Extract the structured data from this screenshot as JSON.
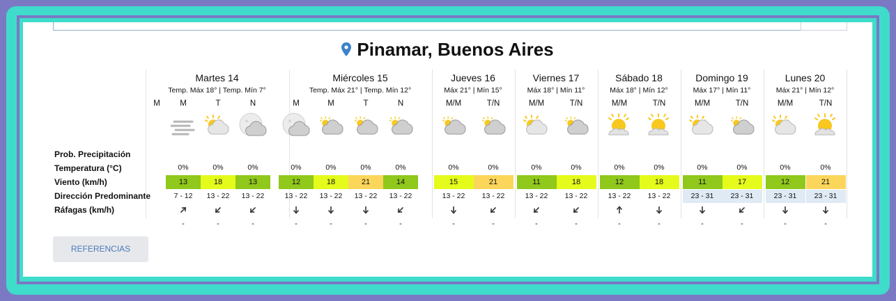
{
  "colors": {
    "frame_outer": "#7b78c4",
    "frame_teal": "#3fdccb",
    "pin": "#3d82c8",
    "temp_green": "#90c81b",
    "temp_lime": "#e4fb1b",
    "temp_orange": "#fcd65b",
    "wind_blue": "#dfeaf5",
    "ref_text": "#4a7ab9"
  },
  "location": {
    "title": "Pinamar, Buenos Aires",
    "icon": "map-pin-icon"
  },
  "row_labels": [
    "Prob. Precipitación",
    "Temperatura (°C)",
    "Viento (km/h)",
    "Dirección Predominante",
    "Ráfagas (km/h)"
  ],
  "extra_column": {
    "period": "M"
  },
  "days": [
    {
      "name": "Martes 14",
      "temps": "Temp. Máx 18° | Temp. Mín 7°",
      "periods": [
        {
          "label": "M",
          "icon": "fog-icon",
          "prob": "0%",
          "temp": "13",
          "temp_color": "#90c81b",
          "wind": "7 - 12",
          "wind_bg": "",
          "dir": "arrow-northeast-icon",
          "gust": "-"
        },
        {
          "label": "T",
          "icon": "sun-cloud-icon",
          "prob": "0%",
          "temp": "18",
          "temp_color": "#e4fb1b",
          "wind": "13 - 22",
          "wind_bg": "",
          "dir": "arrow-southwest-icon",
          "gust": "-"
        },
        {
          "label": "N",
          "icon": "moon-cloud-icon",
          "prob": "0%",
          "temp": "13",
          "temp_color": "#90c81b",
          "wind": "13 - 22",
          "wind_bg": "",
          "dir": "arrow-southwest-icon",
          "gust": "-"
        }
      ]
    },
    {
      "name": "Miércoles 15",
      "temps": "Temp. Máx 21° | Temp. Mín 12°",
      "periods": [
        {
          "label": "M",
          "icon": "moon-cloud-icon",
          "prob": "0%",
          "temp": "12",
          "temp_color": "#90c81b",
          "wind": "13 - 22",
          "wind_bg": "",
          "dir": "arrow-south-icon",
          "gust": "-"
        },
        {
          "label": "M",
          "icon": "cloudy-sun-icon",
          "prob": "0%",
          "temp": "18",
          "temp_color": "#e4fb1b",
          "wind": "13 - 22",
          "wind_bg": "",
          "dir": "arrow-south-icon",
          "gust": "-"
        },
        {
          "label": "T",
          "icon": "cloudy-sun-icon",
          "prob": "0%",
          "temp": "21",
          "temp_color": "#fcd65b",
          "wind": "13 - 22",
          "wind_bg": "",
          "dir": "arrow-south-icon",
          "gust": "-"
        },
        {
          "label": "N",
          "icon": "cloudy-sun-icon",
          "prob": "0%",
          "temp": "14",
          "temp_color": "#90c81b",
          "wind": "13 - 22",
          "wind_bg": "",
          "dir": "arrow-southwest-icon",
          "gust": "-"
        }
      ]
    },
    {
      "name": "Jueves 16",
      "temps": "Máx 21° | Mín 15°",
      "periods": [
        {
          "label": "M/M",
          "icon": "cloudy-sun-icon",
          "prob": "0%",
          "temp": "15",
          "temp_color": "#e4fb1b",
          "wind": "13 - 22",
          "wind_bg": "",
          "dir": "arrow-south-icon",
          "gust": "-"
        },
        {
          "label": "T/N",
          "icon": "cloudy-sun-icon",
          "prob": "0%",
          "temp": "21",
          "temp_color": "#fcd65b",
          "wind": "13 - 22",
          "wind_bg": "",
          "dir": "arrow-southwest-icon",
          "gust": "-"
        }
      ]
    },
    {
      "name": "Viernes 17",
      "temps": "Máx 18° | Mín 11°",
      "periods": [
        {
          "label": "M/M",
          "icon": "sun-cloud-icon",
          "prob": "0%",
          "temp": "11",
          "temp_color": "#90c81b",
          "wind": "13 - 22",
          "wind_bg": "",
          "dir": "arrow-southwest-icon",
          "gust": "-"
        },
        {
          "label": "T/N",
          "icon": "cloudy-sun-icon",
          "prob": "0%",
          "temp": "18",
          "temp_color": "#e4fb1b",
          "wind": "13 - 22",
          "wind_bg": "",
          "dir": "arrow-southwest-icon",
          "gust": "-"
        }
      ]
    },
    {
      "name": "Sábado 18",
      "temps": "Máx 18° | Mín 12°",
      "periods": [
        {
          "label": "M/M",
          "icon": "sunny-icon",
          "prob": "0%",
          "temp": "12",
          "temp_color": "#90c81b",
          "wind": "13 - 22",
          "wind_bg": "",
          "dir": "arrow-north-icon",
          "gust": "-"
        },
        {
          "label": "T/N",
          "icon": "sunny-icon",
          "prob": "0%",
          "temp": "18",
          "temp_color": "#e4fb1b",
          "wind": "13 - 22",
          "wind_bg": "",
          "dir": "arrow-south-icon",
          "gust": "-"
        }
      ]
    },
    {
      "name": "Domingo 19",
      "temps": "Máx 17° | Mín 11°",
      "periods": [
        {
          "label": "M/M",
          "icon": "sun-cloud-icon",
          "prob": "0%",
          "temp": "11",
          "temp_color": "#90c81b",
          "wind": "23 - 31",
          "wind_bg": "#dfeaf5",
          "dir": "arrow-south-icon",
          "gust": "-"
        },
        {
          "label": "T/N",
          "icon": "cloudy-sun-icon",
          "prob": "0%",
          "temp": "17",
          "temp_color": "#e4fb1b",
          "wind": "23 - 31",
          "wind_bg": "#dfeaf5",
          "dir": "arrow-southwest-icon",
          "gust": "-"
        }
      ]
    },
    {
      "name": "Lunes 20",
      "temps": "Máx 21° | Mín 12°",
      "periods": [
        {
          "label": "M/M",
          "icon": "sun-cloud-icon",
          "prob": "0%",
          "temp": "12",
          "temp_color": "#90c81b",
          "wind": "23 - 31",
          "wind_bg": "#dfeaf5",
          "dir": "arrow-south-icon",
          "gust": "-"
        },
        {
          "label": "T/N",
          "icon": "sunny-icon",
          "prob": "0%",
          "temp": "21",
          "temp_color": "#fcd65b",
          "wind": "23 - 31",
          "wind_bg": "#dfeaf5",
          "dir": "arrow-south-icon",
          "gust": "-"
        }
      ]
    }
  ],
  "references_button": "REFERENCIAS"
}
